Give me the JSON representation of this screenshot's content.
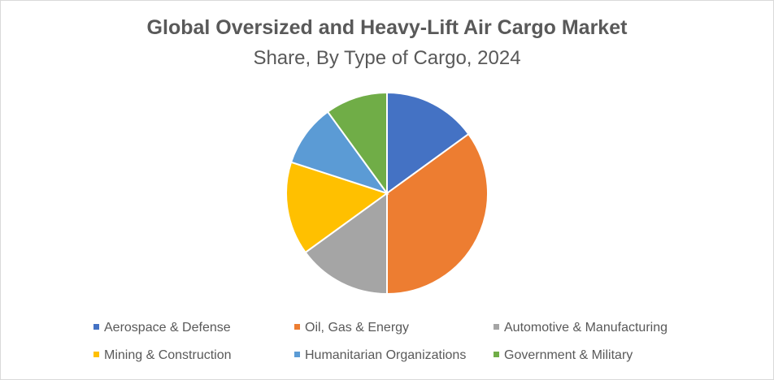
{
  "chart_data": {
    "type": "pie",
    "title": "Global Oversized and Heavy-Lift Air Cargo Market",
    "subtitle": "Share, By Type of Cargo, 2024",
    "categories": [
      "Aerospace & Defense",
      "Oil, Gas & Energy",
      "Automotive & Manufacturing",
      "Mining & Construction",
      "Humanitarian Organizations",
      "Government & Military"
    ],
    "values": [
      15,
      35,
      15,
      15,
      10,
      10
    ],
    "unit": "%",
    "colors": [
      "#4472C4",
      "#ED7D31",
      "#A5A5A5",
      "#FFC000",
      "#5B9BD5",
      "#70AD47"
    ],
    "legend": "bottom"
  }
}
